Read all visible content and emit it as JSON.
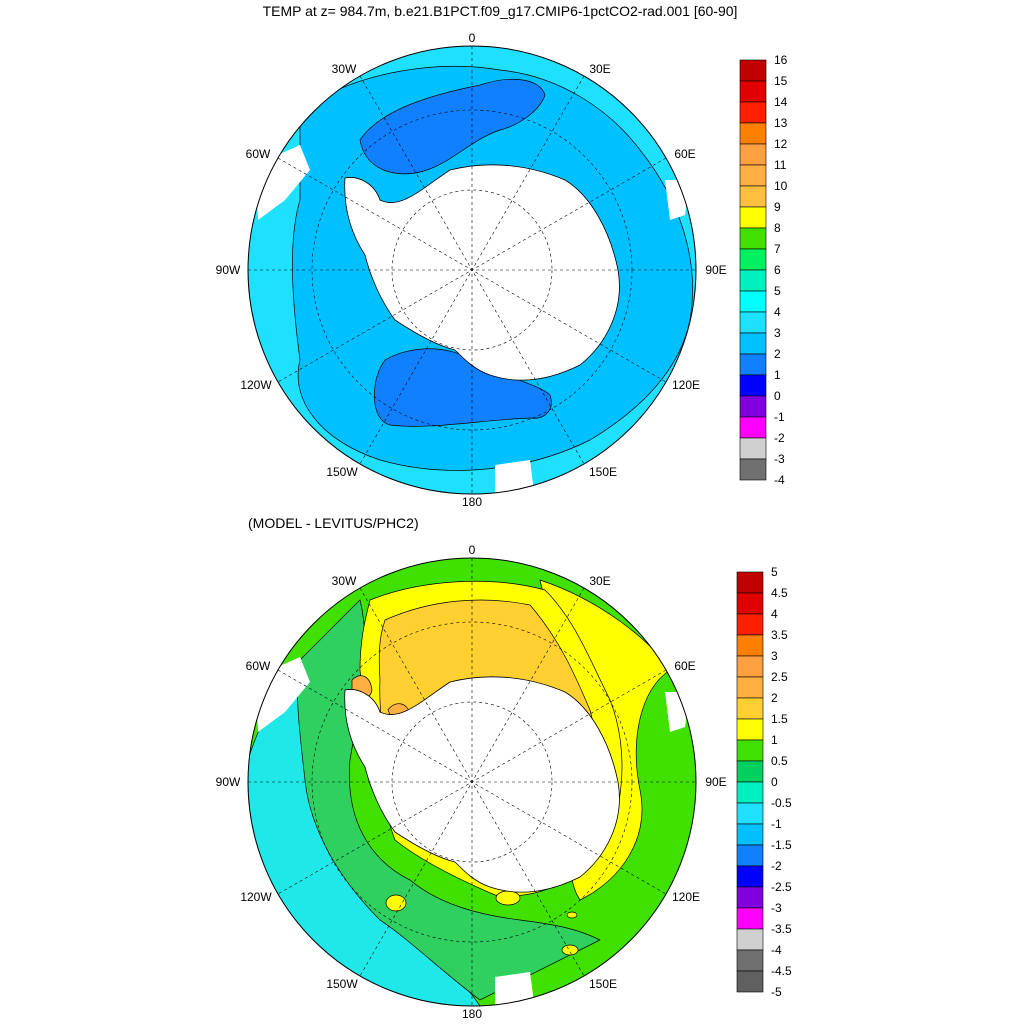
{
  "top_map": {
    "title": "TEMP at z= 984.7m, b.e21.B1PCT.f09_g17.CMIP6-1pctCO2-rad.001 [60-90]",
    "lon_labels": {
      "n": "0",
      "nne": "30E",
      "ene": "60E",
      "e": "90E",
      "ese": "120E",
      "sse": "150E",
      "s": "180",
      "ssw": "150W",
      "wsw": "120W",
      "w": "90W",
      "wnw": "60W",
      "nnw": "30W"
    },
    "colorbar": {
      "labels": [
        "16",
        "15",
        "14",
        "13",
        "12",
        "11",
        "10",
        "9",
        "8",
        "7",
        "6",
        "5",
        "4",
        "3",
        "2",
        "1",
        "0",
        "-1",
        "-2",
        "-3",
        "-4"
      ],
      "colors": [
        "#c00000",
        "#e00000",
        "#ff2000",
        "#ff8000",
        "#ffa040",
        "#ffb040",
        "#ffc040",
        "#ffff00",
        "#40e000",
        "#00f060",
        "#00f0c0",
        "#00ffff",
        "#20e0ff",
        "#00c0ff",
        "#1080ff",
        "#0000ff",
        "#8000e0",
        "#ff00ff",
        "#d0d0d0",
        "#707070"
      ]
    },
    "regions": {
      "outer": "#20e0ff",
      "main": "#00c0ff",
      "cold": "#1080ff",
      "land": "#ffffff"
    }
  },
  "bottom_map": {
    "title": "(MODEL - LEVITUS/PHC2)",
    "lon_labels": {
      "n": "0",
      "nne": "30E",
      "ene": "60E",
      "e": "90E",
      "ese": "120E",
      "sse": "150E",
      "s": "180",
      "ssw": "150W",
      "wsw": "120W",
      "w": "90W",
      "wnw": "60W",
      "nnw": "30W"
    },
    "colorbar": {
      "labels": [
        "5",
        "4.5",
        "4",
        "3.5",
        "3",
        "2.5",
        "2",
        "1.5",
        "1",
        "0.5",
        "0",
        "-0.5",
        "-1",
        "-1.5",
        "-2",
        "-2.5",
        "-3",
        "-3.5",
        "-4",
        "-4.5",
        "-5"
      ],
      "colors": [
        "#c00000",
        "#e00000",
        "#ff2000",
        "#ff8000",
        "#ffa040",
        "#ffb040",
        "#ffd030",
        "#ffff00",
        "#40e000",
        "#00d060",
        "#00f0c0",
        "#20e0ff",
        "#00c0ff",
        "#1080ff",
        "#0000ff",
        "#8000e0",
        "#ff00ff",
        "#d0d0d0",
        "#707070",
        "#606060"
      ]
    },
    "regions": {
      "green": "#40e000",
      "green2": "#30d060",
      "cyan": "#20e8e8",
      "yellow": "#ffff00",
      "gold": "#ffd030",
      "orange": "#ffb040",
      "land": "#ffffff"
    }
  }
}
